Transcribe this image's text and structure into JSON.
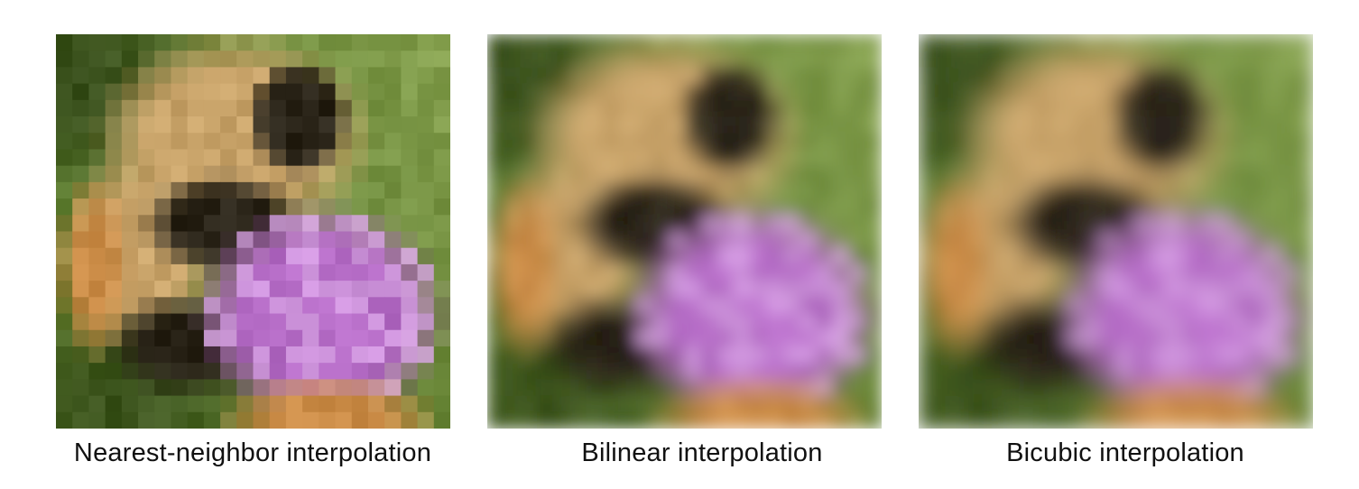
{
  "figure": {
    "panels": [
      {
        "caption": "Nearest-neighbor interpolation",
        "method": "nearest"
      },
      {
        "caption": "Bilinear interpolation",
        "method": "bilinear"
      },
      {
        "caption": "Bicubic interpolation",
        "method": "bicubic"
      }
    ],
    "palette": {
      "green": "#5b7a2e",
      "dark_green": "#2f4416",
      "fur": "#c9a46a",
      "dark": "#2a2418",
      "purple": "#b56cc6",
      "light_purple": "#d9a6e6",
      "orange": "#c98a45"
    }
  }
}
